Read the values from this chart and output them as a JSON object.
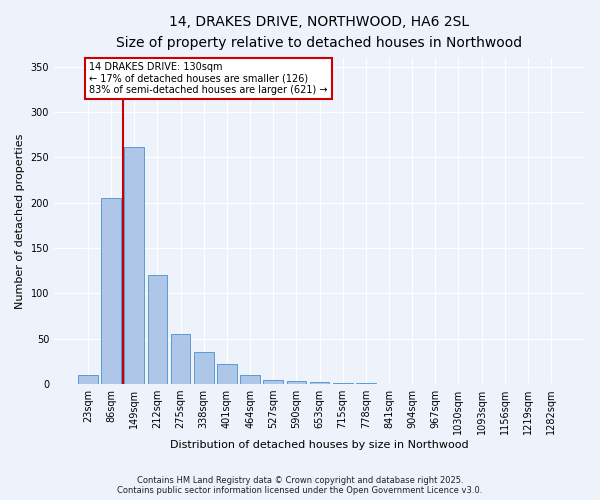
{
  "title_line1": "14, DRAKES DRIVE, NORTHWOOD, HA6 2SL",
  "title_line2": "Size of property relative to detached houses in Northwood",
  "xlabel": "Distribution of detached houses by size in Northwood",
  "ylabel": "Number of detached properties",
  "categories": [
    "23sqm",
    "86sqm",
    "149sqm",
    "212sqm",
    "275sqm",
    "338sqm",
    "401sqm",
    "464sqm",
    "527sqm",
    "590sqm",
    "653sqm",
    "715sqm",
    "778sqm",
    "841sqm",
    "904sqm",
    "967sqm",
    "1030sqm",
    "1093sqm",
    "1156sqm",
    "1219sqm",
    "1282sqm"
  ],
  "values": [
    10,
    205,
    262,
    120,
    55,
    35,
    22,
    10,
    5,
    3,
    2,
    1,
    1,
    0,
    0,
    0,
    0,
    0,
    0,
    0,
    0
  ],
  "bar_color": "#aec6e8",
  "bar_edge_color": "#5b9bd5",
  "annotation_title": "14 DRAKES DRIVE: 130sqm",
  "annotation_line2": "← 17% of detached houses are smaller (126)",
  "annotation_line3": "83% of semi-detached houses are larger (621) →",
  "annotation_box_color": "#ffffff",
  "annotation_box_edge": "#cc0000",
  "red_line_color": "#cc0000",
  "red_line_x": 1.5,
  "ylim": [
    0,
    360
  ],
  "yticks": [
    0,
    50,
    100,
    150,
    200,
    250,
    300,
    350
  ],
  "footnote1": "Contains HM Land Registry data © Crown copyright and database right 2025.",
  "footnote2": "Contains public sector information licensed under the Open Government Licence v3.0.",
  "background_color": "#eef2fa",
  "title_fontsize": 10,
  "subtitle_fontsize": 9,
  "tick_fontsize": 7,
  "ylabel_fontsize": 8,
  "xlabel_fontsize": 8,
  "footnote_fontsize": 6
}
